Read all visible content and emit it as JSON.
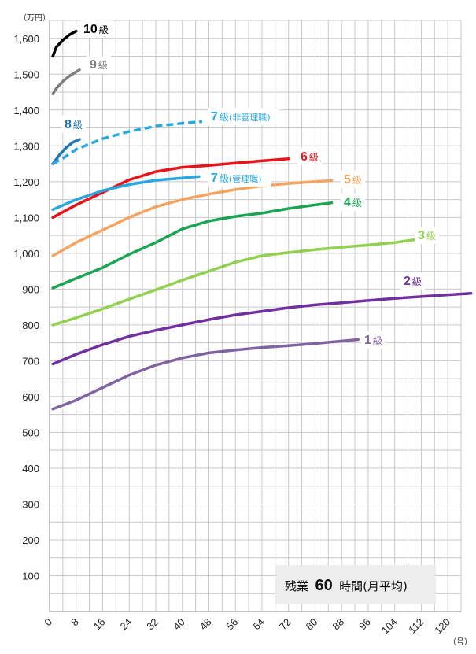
{
  "chart_data": {
    "type": "line",
    "y_unit": "（万円）",
    "x_unit": "（号）",
    "xlim": [
      0,
      124
    ],
    "ylim": [
      0,
      1650
    ],
    "x_ticks": [
      0,
      8,
      16,
      24,
      32,
      40,
      48,
      56,
      64,
      72,
      80,
      88,
      96,
      104,
      112,
      120
    ],
    "y_ticks": [
      100,
      200,
      300,
      400,
      500,
      600,
      700,
      800,
      900,
      1000,
      1100,
      1200,
      1300,
      1400,
      1500,
      1600
    ],
    "y_tick_labels": [
      "100",
      "200",
      "300",
      "400",
      "500",
      "600",
      "700",
      "800",
      "900",
      "1,000",
      "1,100",
      "1,200",
      "1,300",
      "1,400",
      "1,500",
      "1,600"
    ],
    "grid": true,
    "note": {
      "prefix": "残業",
      "number": "60",
      "suffix": "時間(月平均)"
    },
    "series": [
      {
        "name": "10級",
        "label_num": "10",
        "label_kyu": "級",
        "label_sub": "",
        "color": "#000000",
        "dashed": false,
        "x": [
          1,
          2,
          4,
          6,
          8
        ],
        "y": [
          1550,
          1575,
          1595,
          1610,
          1620
        ]
      },
      {
        "name": "9級",
        "label_num": "9",
        "label_kyu": "級",
        "label_sub": "",
        "color": "#7f7f7f",
        "dashed": false,
        "x": [
          1,
          2,
          4,
          6,
          9
        ],
        "y": [
          1445,
          1460,
          1480,
          1495,
          1512
        ]
      },
      {
        "name": "8級",
        "label_num": "8",
        "label_kyu": "級",
        "label_sub": "",
        "color": "#1f78b4",
        "dashed": false,
        "x": [
          1,
          3,
          5,
          7,
          9
        ],
        "y": [
          1250,
          1275,
          1295,
          1310,
          1318
        ]
      },
      {
        "name": "7級(非管理職)",
        "label_num": "7",
        "label_kyu": "級",
        "label_sub": "(非管理職)",
        "color": "#29a8e0",
        "dashed": true,
        "x": [
          1,
          4,
          8,
          16,
          24,
          32,
          40,
          46
        ],
        "y": [
          1250,
          1265,
          1290,
          1320,
          1340,
          1355,
          1363,
          1368
        ]
      },
      {
        "name": "6級",
        "label_num": "6",
        "label_kyu": "級",
        "label_sub": "",
        "color": "#e8141b",
        "dashed": false,
        "x": [
          1,
          8,
          16,
          24,
          32,
          40,
          48,
          56,
          64,
          72
        ],
        "y": [
          1100,
          1135,
          1170,
          1205,
          1228,
          1240,
          1245,
          1252,
          1258,
          1264
        ]
      },
      {
        "name": "7級(管理職)",
        "label_num": "7",
        "label_kyu": "級",
        "label_sub": "(管理職)",
        "color": "#29a8e0",
        "dashed": false,
        "x": [
          1,
          8,
          16,
          24,
          32,
          40,
          45
        ],
        "y": [
          1122,
          1150,
          1175,
          1192,
          1204,
          1210,
          1214
        ]
      },
      {
        "name": "5級",
        "label_num": "5",
        "label_kyu": "級",
        "label_sub": "",
        "color": "#f4a460",
        "dashed": false,
        "x": [
          1,
          8,
          16,
          24,
          32,
          40,
          48,
          56,
          64,
          72,
          80,
          85
        ],
        "y": [
          993,
          1030,
          1065,
          1100,
          1130,
          1150,
          1165,
          1178,
          1188,
          1195,
          1200,
          1203
        ]
      },
      {
        "name": "4級",
        "label_num": "4",
        "label_kyu": "級",
        "label_sub": "",
        "color": "#1aa454",
        "dashed": false,
        "x": [
          1,
          8,
          16,
          24,
          32,
          40,
          48,
          56,
          64,
          72,
          80,
          85
        ],
        "y": [
          903,
          930,
          960,
          997,
          1030,
          1068,
          1090,
          1103,
          1112,
          1125,
          1135,
          1141
        ]
      },
      {
        "name": "3級",
        "label_num": "3",
        "label_kyu": "級",
        "label_sub": "",
        "color": "#92d050",
        "dashed": false,
        "x": [
          1,
          8,
          16,
          24,
          32,
          40,
          48,
          56,
          64,
          72,
          80,
          88,
          96,
          104,
          110
        ],
        "y": [
          800,
          820,
          845,
          872,
          898,
          925,
          950,
          975,
          993,
          1002,
          1010,
          1017,
          1023,
          1030,
          1038
        ]
      },
      {
        "name": "2級",
        "label_num": "2",
        "label_kyu": "級",
        "label_sub": "",
        "color": "#7030a0",
        "dashed": false,
        "x": [
          1,
          8,
          16,
          24,
          32,
          40,
          48,
          56,
          64,
          72,
          80,
          88,
          96,
          104,
          112,
          120,
          127
        ],
        "y": [
          691,
          718,
          745,
          768,
          785,
          800,
          815,
          828,
          838,
          848,
          856,
          862,
          868,
          874,
          879,
          884,
          888
        ]
      },
      {
        "name": "1級",
        "label_num": "1",
        "label_kyu": "級",
        "label_sub": "",
        "color": "#8064a2",
        "dashed": false,
        "x": [
          1,
          8,
          16,
          24,
          32,
          40,
          48,
          56,
          64,
          72,
          80,
          88,
          93
        ],
        "y": [
          565,
          590,
          625,
          660,
          688,
          708,
          722,
          730,
          737,
          742,
          748,
          755,
          759
        ]
      }
    ]
  }
}
